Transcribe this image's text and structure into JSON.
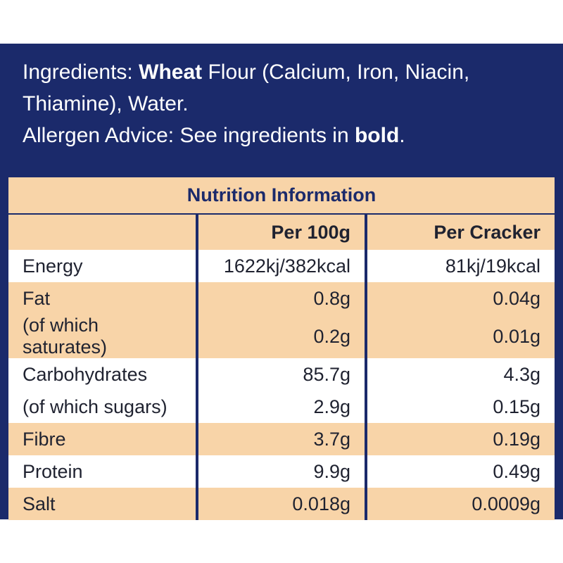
{
  "ingredients": {
    "label": "Ingredients:",
    "bold": "Wheat",
    "rest": "Flour (Calcium, Iron, Niacin, Thiamine), Water."
  },
  "allergen": {
    "text": "Allergen Advice: See ingredients in",
    "bold": "bold",
    "end": "."
  },
  "table": {
    "title": "Nutrition Information",
    "header": [
      "Per 100g",
      "Per Cracker"
    ],
    "rows": [
      [
        "Energy",
        "1622kj/382kcal",
        "81kj/19kcal"
      ],
      [
        "Fat",
        "0.8g",
        "0.04g"
      ],
      [
        "(of which saturates)",
        "0.2g",
        "0.01g"
      ],
      [
        "Carbohydrates",
        "85.7g",
        "4.3g"
      ],
      [
        "(of which sugars)",
        "2.9g",
        "0.15g"
      ],
      [
        "Fibre",
        "3.7g",
        "0.19g"
      ],
      [
        "Protein",
        "9.9g",
        "0.49g"
      ],
      [
        "Salt",
        "0.018g",
        "0.0009g"
      ]
    ]
  }
}
